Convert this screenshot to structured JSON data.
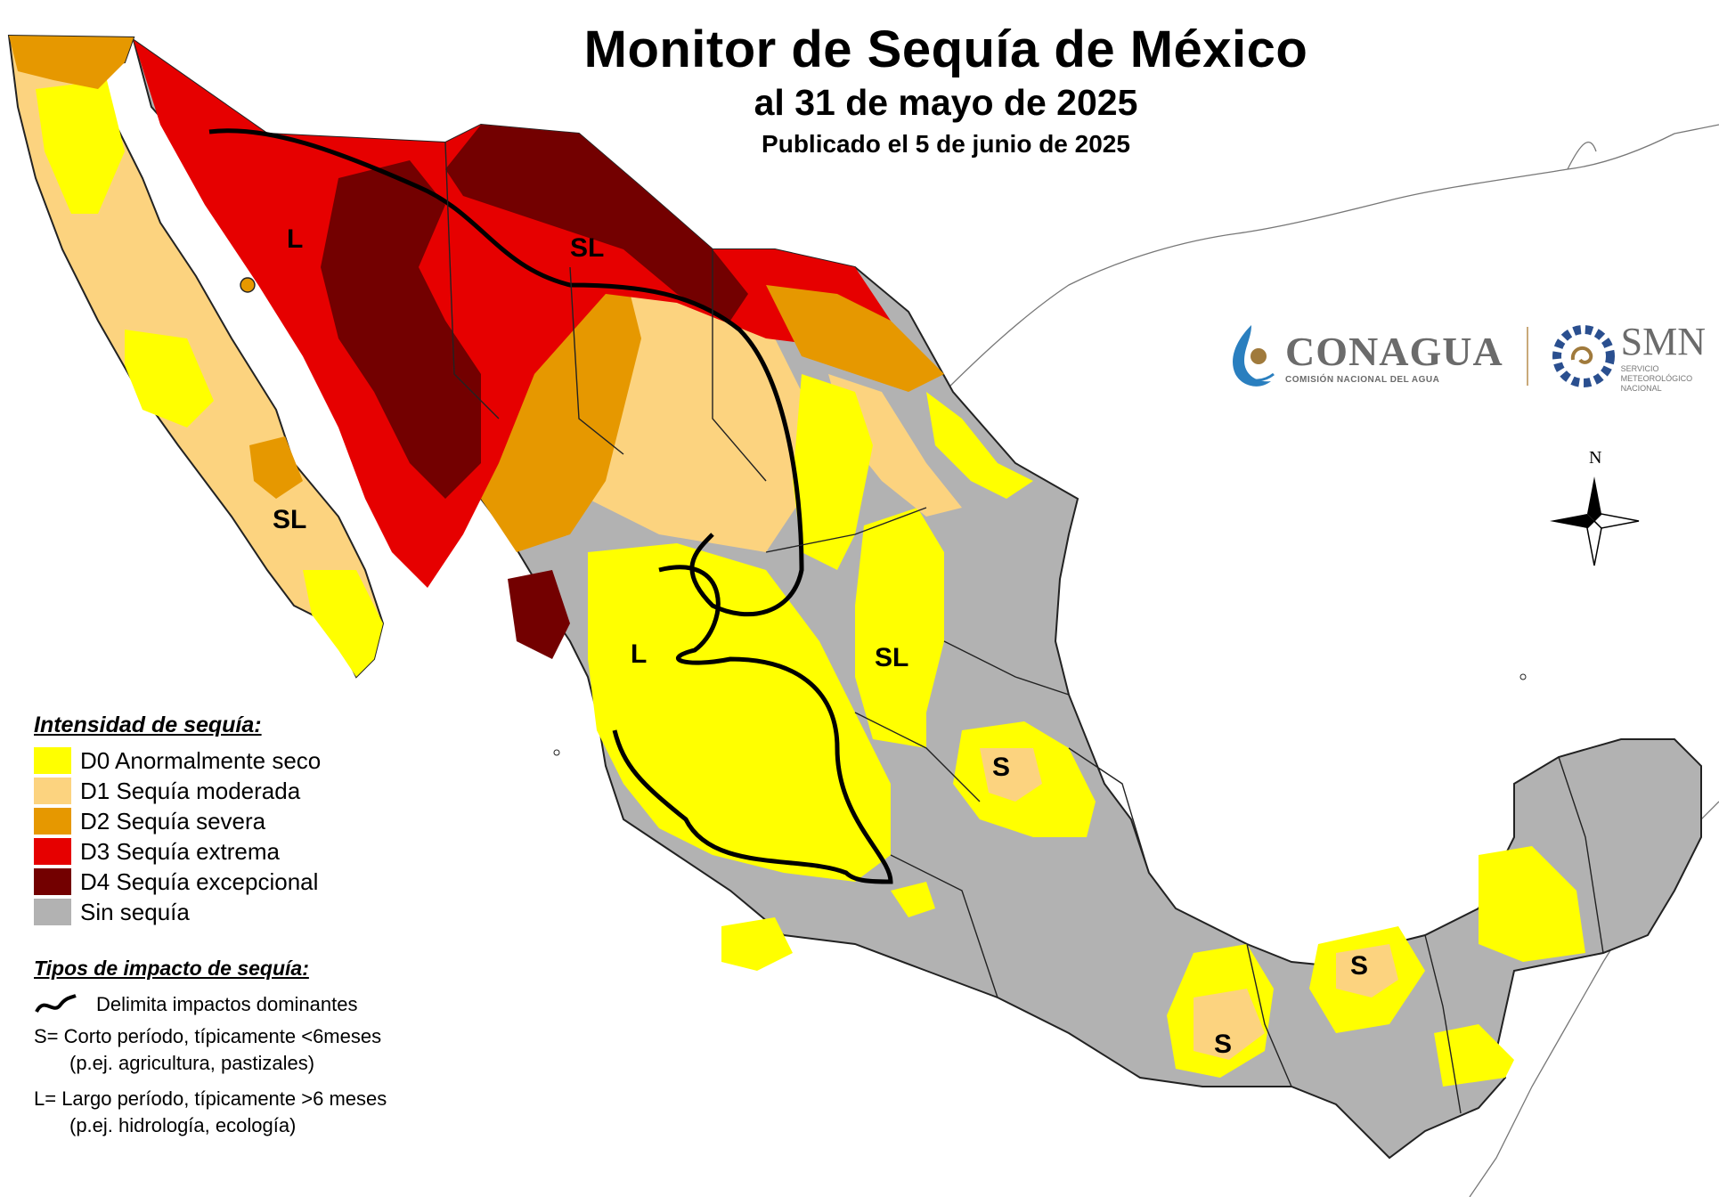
{
  "header": {
    "title": "Monitor de Sequía de México",
    "subtitle": "al 31 de mayo de 2025",
    "published": "Publicado el 5 de junio de 2025"
  },
  "legend_intensity": {
    "title": "Intensidad de sequía:",
    "items": [
      {
        "code": "D0",
        "label": "D0 Anormalmente seco",
        "color": "#ffff00"
      },
      {
        "code": "D1",
        "label": "D1 Sequía moderada",
        "color": "#fcd37f"
      },
      {
        "code": "D2",
        "label": "D2 Sequía severa",
        "color": "#e69800"
      },
      {
        "code": "D3",
        "label": "D3 Sequía extrema",
        "color": "#e60000"
      },
      {
        "code": "D4",
        "label": "D4 Sequía excepcional",
        "color": "#730000"
      },
      {
        "code": "none",
        "label": "Sin sequía",
        "color": "#b2b2b2"
      }
    ]
  },
  "legend_impact": {
    "title": "Tipos de impacto de sequía:",
    "boundary_label": "Delimita impactos dominantes",
    "short_line1": "S= Corto período, típicamente <6meses",
    "short_line2": "(p.ej. agricultura, pastizales)",
    "long_line1": "L= Largo período, típicamente >6 meses",
    "long_line2": "(p.ej. hidrología, ecología)"
  },
  "map_labels": [
    {
      "id": "north-sonora",
      "text": "L"
    },
    {
      "id": "north-central",
      "text": "SL"
    },
    {
      "id": "baja-sur",
      "text": "SL"
    },
    {
      "id": "west-central",
      "text": "L"
    },
    {
      "id": "east-central",
      "text": "SL"
    },
    {
      "id": "gulf-1",
      "text": "S"
    },
    {
      "id": "south-1",
      "text": "S"
    },
    {
      "id": "south-2",
      "text": "S"
    }
  ],
  "logos": {
    "conagua_name": "CONAGUA",
    "conagua_sub": "COMISIÓN NACIONAL DEL AGUA",
    "smn_name": "SMN",
    "smn_sub_1": "SERVICIO",
    "smn_sub_2": "METEOROLÓGICO",
    "smn_sub_3": "NACIONAL"
  },
  "north_arrow": {
    "label": "N"
  }
}
